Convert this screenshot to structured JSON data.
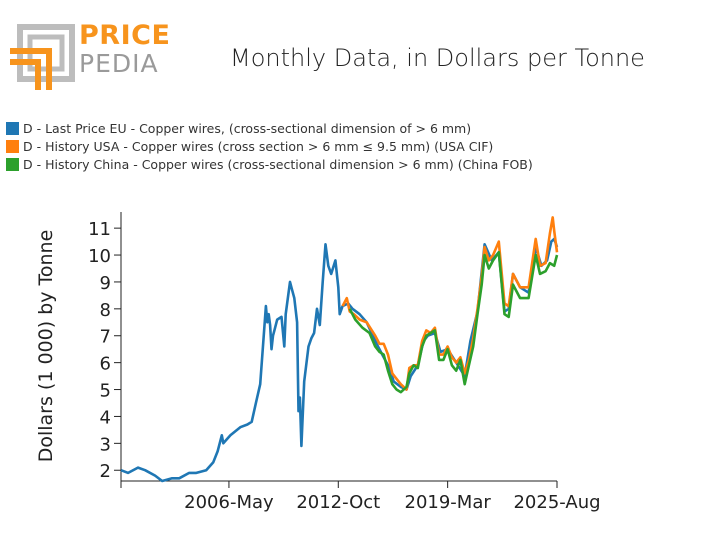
{
  "brand": {
    "line1": "PRICE",
    "line2": "PEDIA",
    "colors": {
      "orange": "#f7941d",
      "grey": "#9a9a9a"
    }
  },
  "header": {
    "title": "Monthly Data, in Dollars per Tonne"
  },
  "legend": {
    "items": [
      {
        "label": "D - Last Price EU - Copper wires, (cross-sectional dimension of > 6 mm)",
        "color": "#1f77b4"
      },
      {
        "label": "D - History USA - Copper wires (cross section > 6 mm ≤ 9.5 mm) (USA CIF)",
        "color": "#ff7f0e"
      },
      {
        "label": "D - History China - Copper wires (cross-sectional dimension > 6 mm) (China FOB)",
        "color": "#2ca02c"
      }
    ]
  },
  "chart_data": {
    "type": "line",
    "title": "Monthly Data, in Dollars per Tonne",
    "ylabel": "Dollars (1 000) by Tonne",
    "xlabel": "",
    "x_ticks": [
      "2006-May",
      "2012-Oct",
      "2019-Mar",
      "2025-Aug"
    ],
    "y_ticks": [
      2,
      3,
      4,
      5,
      6,
      7,
      8,
      9,
      10,
      11
    ],
    "ylim": [
      1.6,
      11.6
    ],
    "xlim": [
      "2000-01",
      "2025-08"
    ],
    "grid": false,
    "legend_position": "top-left",
    "series": [
      {
        "name": "D - Last Price EU - Copper wires, (cross-sectional dimension of > 6 mm)",
        "color": "#1f77b4",
        "points": [
          [
            "2000-01",
            2.0
          ],
          [
            "2000-06",
            1.9
          ],
          [
            "2001-01",
            2.1
          ],
          [
            "2001-06",
            2.0
          ],
          [
            "2002-01",
            1.8
          ],
          [
            "2002-06",
            1.6
          ],
          [
            "2003-01",
            1.7
          ],
          [
            "2003-06",
            1.7
          ],
          [
            "2004-01",
            1.9
          ],
          [
            "2004-06",
            1.9
          ],
          [
            "2005-01",
            2.0
          ],
          [
            "2005-06",
            2.3
          ],
          [
            "2005-09",
            2.7
          ],
          [
            "2005-12",
            3.3
          ],
          [
            "2006-01",
            3.0
          ],
          [
            "2006-06",
            3.3
          ],
          [
            "2007-01",
            3.6
          ],
          [
            "2007-06",
            3.7
          ],
          [
            "2007-09",
            3.8
          ],
          [
            "2007-12",
            4.5
          ],
          [
            "2008-03",
            5.2
          ],
          [
            "2008-07",
            8.1
          ],
          [
            "2008-08",
            7.5
          ],
          [
            "2008-09",
            7.8
          ],
          [
            "2008-10",
            7.4
          ],
          [
            "2008-11",
            6.5
          ],
          [
            "2008-12",
            7.0
          ],
          [
            "2009-01",
            7.2
          ],
          [
            "2009-03",
            7.6
          ],
          [
            "2009-06",
            7.7
          ],
          [
            "2009-08",
            6.6
          ],
          [
            "2009-09",
            7.8
          ],
          [
            "2009-12",
            9.0
          ],
          [
            "2010-01",
            8.8
          ],
          [
            "2010-03",
            8.4
          ],
          [
            "2010-05",
            7.5
          ],
          [
            "2010-06",
            4.2
          ],
          [
            "2010-07",
            4.7
          ],
          [
            "2010-08",
            2.9
          ],
          [
            "2010-10",
            5.3
          ],
          [
            "2011-01",
            6.6
          ],
          [
            "2011-03",
            6.9
          ],
          [
            "2011-05",
            7.1
          ],
          [
            "2011-07",
            8.0
          ],
          [
            "2011-09",
            7.4
          ],
          [
            "2011-11",
            9.0
          ],
          [
            "2012-01",
            10.4
          ],
          [
            "2012-03",
            9.6
          ],
          [
            "2012-05",
            9.3
          ],
          [
            "2012-08",
            9.8
          ],
          [
            "2012-10",
            8.8
          ],
          [
            "2012-11",
            7.8
          ],
          [
            "2013-01",
            8.1
          ],
          [
            "2013-05",
            8.2
          ],
          [
            "2013-08",
            8.0
          ],
          [
            "2014-01",
            7.8
          ],
          [
            "2014-06",
            7.5
          ],
          [
            "2015-01",
            6.7
          ],
          [
            "2015-06",
            6.2
          ],
          [
            "2015-10",
            5.8
          ],
          [
            "2016-01",
            5.3
          ],
          [
            "2016-06",
            5.1
          ],
          [
            "2016-10",
            5.0
          ],
          [
            "2017-01",
            5.5
          ],
          [
            "2017-06",
            5.9
          ],
          [
            "2017-10",
            6.8
          ],
          [
            "2018-01",
            7.0
          ],
          [
            "2018-06",
            7.1
          ],
          [
            "2018-10",
            6.4
          ],
          [
            "2019-03",
            6.5
          ],
          [
            "2019-09",
            6.0
          ],
          [
            "2020-03",
            5.5
          ],
          [
            "2020-07",
            6.8
          ],
          [
            "2020-12",
            7.9
          ],
          [
            "2021-05",
            10.4
          ],
          [
            "2021-10",
            9.8
          ],
          [
            "2022-03",
            10.1
          ],
          [
            "2022-07",
            7.9
          ],
          [
            "2022-10",
            8.0
          ],
          [
            "2023-01",
            9.3
          ],
          [
            "2023-06",
            8.8
          ],
          [
            "2023-12",
            8.6
          ],
          [
            "2024-05",
            10.3
          ],
          [
            "2024-09",
            9.6
          ],
          [
            "2025-01",
            9.8
          ],
          [
            "2025-04",
            10.5
          ],
          [
            "2025-06",
            10.6
          ],
          [
            "2025-08",
            10.3
          ]
        ]
      },
      {
        "name": "D - History USA - Copper wires (cross section > 6 mm ≤ 9.5 mm) (USA CIF)",
        "color": "#ff7f0e",
        "points": [
          [
            "2013-01",
            8.1
          ],
          [
            "2013-04",
            8.4
          ],
          [
            "2013-06",
            7.9
          ],
          [
            "2013-09",
            7.8
          ],
          [
            "2014-01",
            7.6
          ],
          [
            "2014-06",
            7.5
          ],
          [
            "2014-12",
            7.0
          ],
          [
            "2015-03",
            6.7
          ],
          [
            "2015-06",
            6.7
          ],
          [
            "2015-09",
            6.3
          ],
          [
            "2015-12",
            5.6
          ],
          [
            "2016-03",
            5.4
          ],
          [
            "2016-06",
            5.2
          ],
          [
            "2016-10",
            5.0
          ],
          [
            "2016-12",
            5.8
          ],
          [
            "2017-03",
            5.9
          ],
          [
            "2017-06",
            5.9
          ],
          [
            "2017-09",
            6.8
          ],
          [
            "2017-12",
            7.2
          ],
          [
            "2018-03",
            7.1
          ],
          [
            "2018-06",
            7.3
          ],
          [
            "2018-09",
            6.3
          ],
          [
            "2018-12",
            6.3
          ],
          [
            "2019-03",
            6.6
          ],
          [
            "2019-06",
            6.2
          ],
          [
            "2019-09",
            6.0
          ],
          [
            "2019-12",
            6.2
          ],
          [
            "2020-03",
            5.6
          ],
          [
            "2020-06",
            6.1
          ],
          [
            "2020-09",
            6.9
          ],
          [
            "2020-12",
            8.0
          ],
          [
            "2021-03",
            9.2
          ],
          [
            "2021-05",
            10.3
          ],
          [
            "2021-08",
            9.8
          ],
          [
            "2021-11",
            10.0
          ],
          [
            "2022-03",
            10.5
          ],
          [
            "2022-07",
            8.2
          ],
          [
            "2022-10",
            8.1
          ],
          [
            "2023-01",
            9.3
          ],
          [
            "2023-06",
            8.8
          ],
          [
            "2023-12",
            8.8
          ],
          [
            "2024-05",
            10.6
          ],
          [
            "2024-08",
            9.6
          ],
          [
            "2024-12",
            9.7
          ],
          [
            "2025-03",
            10.8
          ],
          [
            "2025-05",
            11.4
          ],
          [
            "2025-06",
            10.9
          ],
          [
            "2025-08",
            10.1
          ]
        ]
      },
      {
        "name": "D - History China - Copper wires (cross-sectional dimension > 6 mm) (China FOB)",
        "color": "#2ca02c",
        "points": [
          [
            "2013-06",
            8.0
          ],
          [
            "2013-10",
            7.6
          ],
          [
            "2014-03",
            7.3
          ],
          [
            "2014-08",
            7.1
          ],
          [
            "2014-12",
            6.6
          ],
          [
            "2015-03",
            6.4
          ],
          [
            "2015-06",
            6.3
          ],
          [
            "2015-09",
            5.7
          ],
          [
            "2015-12",
            5.2
          ],
          [
            "2016-03",
            5.0
          ],
          [
            "2016-06",
            4.9
          ],
          [
            "2016-10",
            5.1
          ],
          [
            "2016-12",
            5.6
          ],
          [
            "2017-03",
            5.9
          ],
          [
            "2017-06",
            5.8
          ],
          [
            "2017-09",
            6.6
          ],
          [
            "2017-12",
            7.0
          ],
          [
            "2018-03",
            7.1
          ],
          [
            "2018-06",
            7.2
          ],
          [
            "2018-09",
            6.1
          ],
          [
            "2018-12",
            6.1
          ],
          [
            "2019-03",
            6.5
          ],
          [
            "2019-06",
            5.9
          ],
          [
            "2019-09",
            5.7
          ],
          [
            "2019-12",
            6.1
          ],
          [
            "2020-03",
            5.2
          ],
          [
            "2020-06",
            5.9
          ],
          [
            "2020-09",
            6.6
          ],
          [
            "2020-12",
            7.8
          ],
          [
            "2021-03",
            8.9
          ],
          [
            "2021-05",
            10.0
          ],
          [
            "2021-08",
            9.5
          ],
          [
            "2021-11",
            9.8
          ],
          [
            "2022-03",
            10.1
          ],
          [
            "2022-07",
            7.8
          ],
          [
            "2022-10",
            7.7
          ],
          [
            "2023-01",
            8.9
          ],
          [
            "2023-06",
            8.4
          ],
          [
            "2023-12",
            8.4
          ],
          [
            "2024-05",
            10.0
          ],
          [
            "2024-08",
            9.3
          ],
          [
            "2024-12",
            9.4
          ],
          [
            "2025-03",
            9.7
          ],
          [
            "2025-06",
            9.6
          ],
          [
            "2025-08",
            10.0
          ]
        ]
      }
    ]
  }
}
